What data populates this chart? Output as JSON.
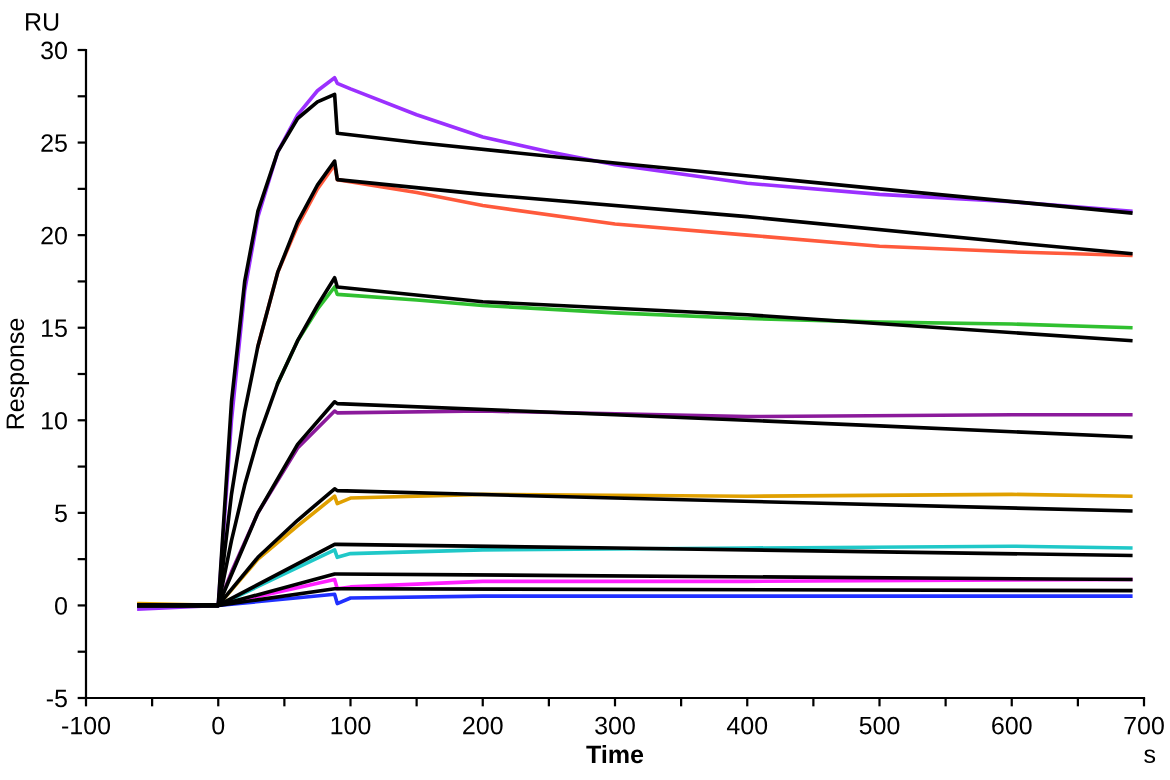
{
  "chart_data": {
    "type": "line",
    "xlabel": "Time",
    "ylabel": "Response",
    "annotations": [
      "RU",
      "s"
    ],
    "xlim": [
      -100,
      700
    ],
    "ylim": [
      -5,
      30
    ],
    "xticks": [
      -100,
      {
        "value": -50,
        "label": null
      },
      0,
      {
        "value": 50,
        "label": null
      },
      100,
      {
        "value": 150,
        "label": null
      },
      200,
      {
        "value": 250,
        "label": null
      },
      300,
      {
        "value": 350,
        "label": null
      },
      400,
      {
        "value": 450,
        "label": null
      },
      500,
      {
        "value": 550,
        "label": null
      },
      600,
      {
        "value": 650,
        "label": null
      },
      700
    ],
    "yticks": [
      -5,
      {
        "value": -2.5,
        "label": null
      },
      0,
      {
        "value": 2.5,
        "label": null
      },
      5,
      {
        "value": 7.5,
        "label": null
      },
      10,
      {
        "value": 12.5,
        "label": null
      },
      15,
      {
        "value": 17.5,
        "label": null
      },
      20,
      {
        "value": 22.5,
        "label": null
      },
      25,
      {
        "value": 27.5,
        "label": null
      },
      30
    ],
    "grid": false,
    "legend": false,
    "marker": "none",
    "line_style": "solid",
    "series": [
      {
        "color": "#9b30ff",
        "x": [
          -60,
          0,
          10,
          20,
          30,
          45,
          60,
          75,
          88,
          90,
          100,
          150,
          200,
          250,
          300,
          400,
          500,
          600,
          690
        ],
        "values": [
          -0.2,
          0,
          10,
          17,
          21,
          24.5,
          26.5,
          27.8,
          28.5,
          28.2,
          27.9,
          26.5,
          25.3,
          24.5,
          23.8,
          22.8,
          22.2,
          21.8,
          21.3
        ]
      },
      {
        "color": "#ff5a3c",
        "x": [
          30,
          45,
          60,
          75,
          88,
          90,
          150,
          200,
          300,
          400,
          500,
          600,
          690
        ],
        "values": [
          14,
          18,
          20.5,
          22.5,
          23.8,
          23,
          22.3,
          21.6,
          20.6,
          20,
          19.4,
          19.1,
          18.9
        ]
      },
      {
        "color": "#30c030",
        "x": [
          45,
          60,
          75,
          88,
          90,
          150,
          200,
          300,
          400,
          500,
          600,
          690
        ],
        "values": [
          12,
          14.3,
          16,
          17.2,
          16.8,
          16.5,
          16.2,
          15.8,
          15.5,
          15.3,
          15.2,
          15
        ]
      },
      {
        "color": "#8b1a9b",
        "x": [
          -60,
          0,
          10,
          30,
          60,
          88,
          90,
          200,
          400,
          600,
          690
        ],
        "values": [
          0,
          0,
          1.8,
          5,
          8.5,
          10.5,
          10.4,
          10.5,
          10.2,
          10.3,
          10.3
        ]
      },
      {
        "color": "#e0a000",
        "x": [
          -60,
          0,
          30,
          60,
          88,
          90,
          100,
          200,
          400,
          600,
          690
        ],
        "values": [
          0.1,
          0,
          2.5,
          4.3,
          5.9,
          5.5,
          5.8,
          6,
          5.9,
          6,
          5.9
        ]
      },
      {
        "color": "#20c8c8",
        "x": [
          -60,
          0,
          88,
          90,
          100,
          200,
          400,
          600,
          690
        ],
        "values": [
          0,
          0,
          3,
          2.6,
          2.8,
          3,
          3.1,
          3.2,
          3.1
        ]
      },
      {
        "color": "#ff20ff",
        "x": [
          -60,
          0,
          88,
          90,
          100,
          200,
          400,
          690
        ],
        "values": [
          0,
          0,
          1.4,
          0.9,
          1,
          1.3,
          1.3,
          1.4
        ]
      },
      {
        "color": "#2030ff",
        "x": [
          -60,
          0,
          88,
          90,
          100,
          200,
          690
        ],
        "values": [
          0,
          0,
          0.6,
          0.1,
          0.4,
          0.5,
          0.5
        ]
      },
      {
        "color": "#000000",
        "x": [
          -60,
          0,
          10,
          20,
          30,
          45,
          60,
          75,
          88,
          90,
          150,
          300,
          500,
          690
        ],
        "values": [
          0,
          0,
          11,
          17.5,
          21.3,
          24.5,
          26.3,
          27.2,
          27.6,
          25.5,
          25,
          23.9,
          22.5,
          21.2
        ]
      },
      {
        "color": "#000000",
        "x": [
          -60,
          0,
          10,
          20,
          30,
          45,
          60,
          75,
          88,
          90,
          200,
          400,
          600,
          690
        ],
        "values": [
          0,
          0,
          6,
          10.5,
          14,
          18,
          20.7,
          22.7,
          24,
          23,
          22.2,
          21,
          19.6,
          19
        ]
      },
      {
        "color": "#000000",
        "x": [
          -60,
          0,
          10,
          20,
          30,
          45,
          60,
          75,
          88,
          90,
          200,
          400,
          690
        ],
        "values": [
          0,
          0,
          3.5,
          6.5,
          9,
          12,
          14.3,
          16.2,
          17.7,
          17.2,
          16.4,
          15.7,
          14.3
        ]
      },
      {
        "color": "#000000",
        "x": [
          -60,
          0,
          30,
          60,
          88,
          90,
          300,
          500,
          690
        ],
        "values": [
          0,
          0,
          5,
          8.7,
          11,
          10.9,
          10.3,
          9.7,
          9.1
        ]
      },
      {
        "color": "#000000",
        "x": [
          -60,
          0,
          30,
          60,
          88,
          90,
          300,
          690
        ],
        "values": [
          0,
          0,
          2.6,
          4.6,
          6.3,
          6.2,
          5.8,
          5.1
        ]
      },
      {
        "color": "#000000",
        "x": [
          -60,
          0,
          88,
          90,
          300,
          690
        ],
        "values": [
          0,
          0,
          3.3,
          3.3,
          3.1,
          2.7
        ]
      },
      {
        "color": "#000000",
        "x": [
          -60,
          0,
          88,
          90,
          690
        ],
        "values": [
          0,
          0,
          1.7,
          1.7,
          1.4
        ]
      },
      {
        "color": "#000000",
        "x": [
          -60,
          0,
          88,
          90,
          690
        ],
        "values": [
          0,
          0,
          0.9,
          0.9,
          0.8
        ]
      }
    ]
  }
}
